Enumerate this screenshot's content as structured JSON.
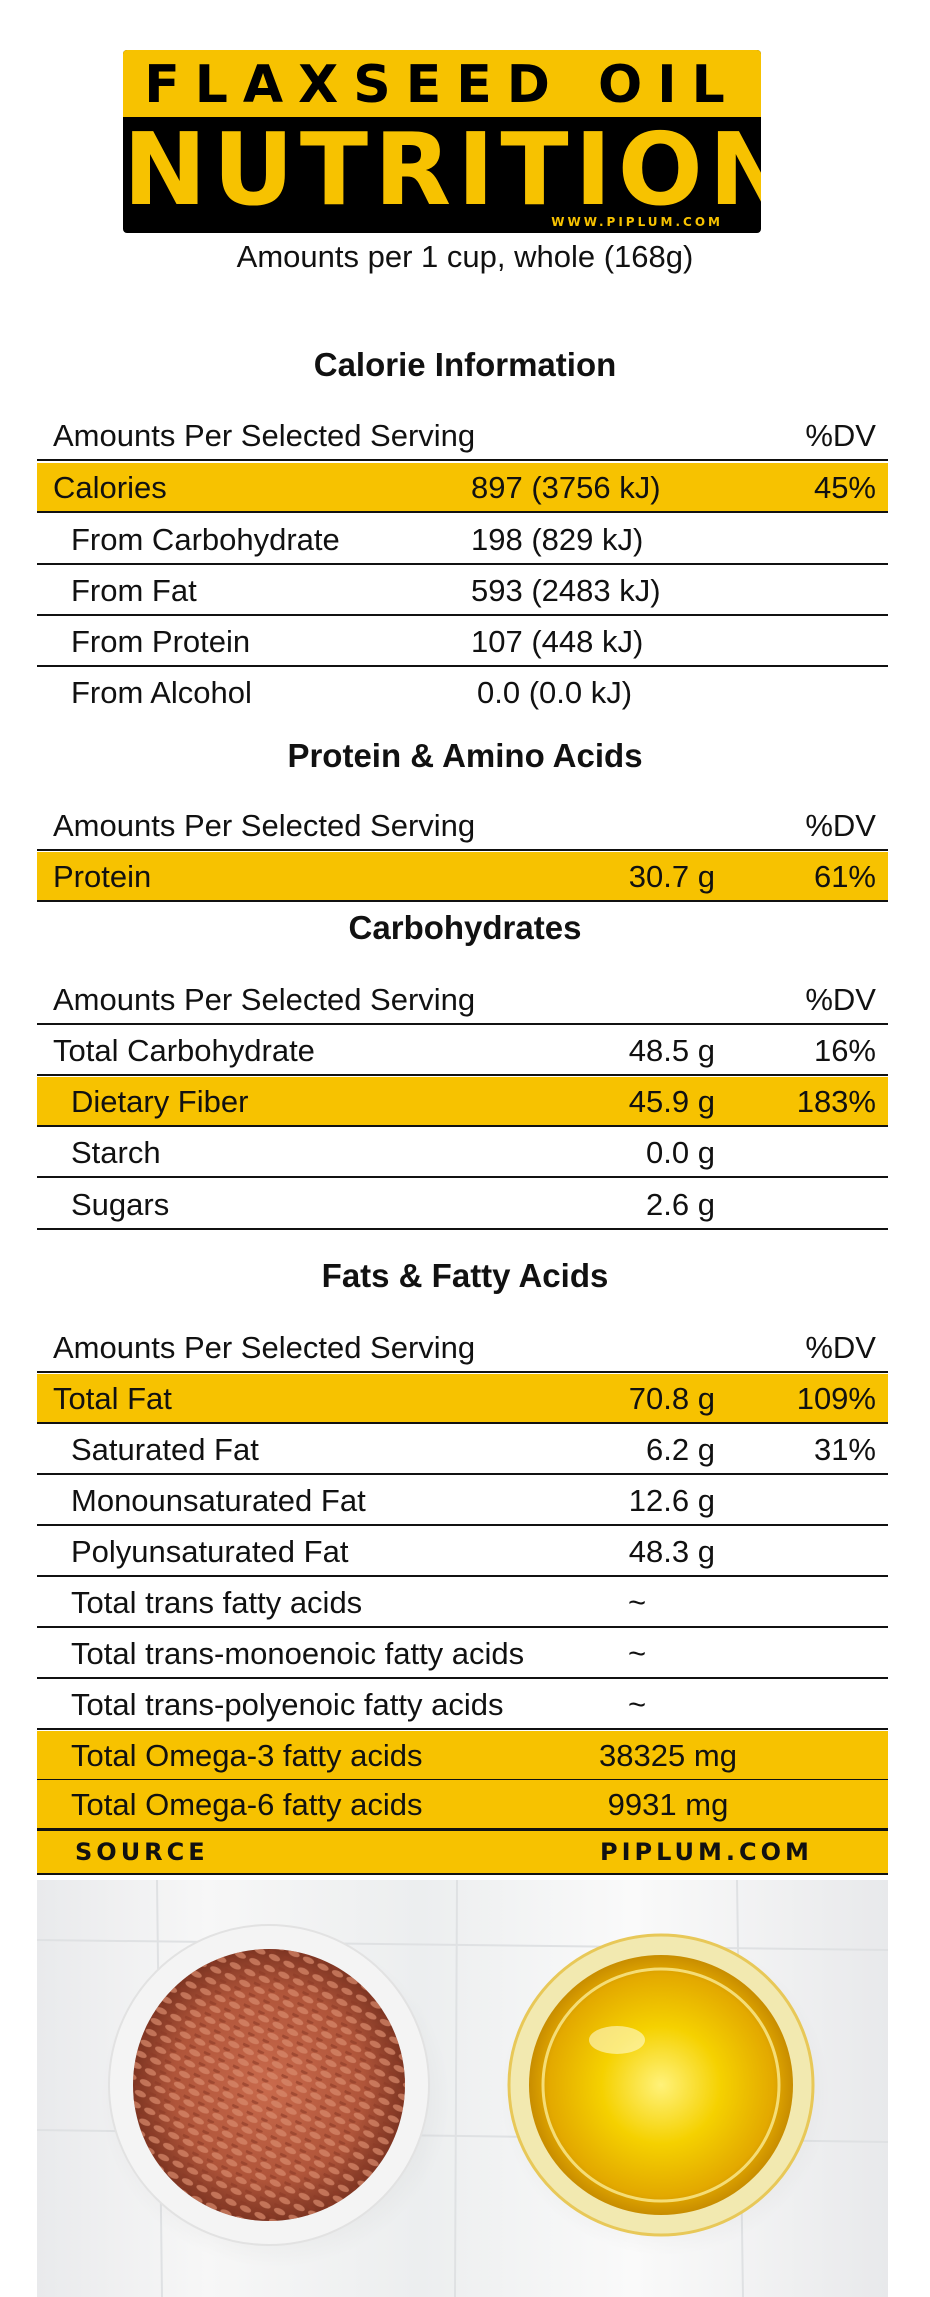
{
  "header": {
    "line1": "FLAXSEED OIL",
    "line2": "NUTRITION",
    "website": "WWW.PIPLUM.COM",
    "serving": "Amounts per 1 cup, whole (168g)"
  },
  "sections": {
    "calorie": {
      "title": "Calorie Information",
      "header_label": "Amounts Per Selected Serving",
      "header_dv": "%DV",
      "rows": [
        {
          "label": "Calories",
          "value": "897 (3756 kJ)",
          "dv": "45%"
        },
        {
          "label": "From Carbohydrate",
          "value": "198 (829 kJ)",
          "dv": ""
        },
        {
          "label": "From Fat",
          "value": "593 (2483 kJ)",
          "dv": ""
        },
        {
          "label": "From Protein",
          "value": "107 (448 kJ)",
          "dv": ""
        },
        {
          "label": "From Alcohol",
          "value": "0.0 (0.0 kJ)",
          "dv": ""
        }
      ]
    },
    "protein": {
      "title": "Protein & Amino Acids",
      "header_label": "Amounts Per Selected Serving",
      "header_dv": "%DV",
      "rows": [
        {
          "label": "Protein",
          "value": "30.7 g",
          "dv": "61%"
        }
      ]
    },
    "carbs": {
      "title": "Carbohydrates",
      "header_label": "Amounts Per Selected Serving",
      "header_dv": "%DV",
      "rows": [
        {
          "label": "Total Carbohydrate",
          "value": "48.5 g",
          "dv": "16%"
        },
        {
          "label": "Dietary Fiber",
          "value": "45.9 g",
          "dv": "183%"
        },
        {
          "label": "Starch",
          "value": "0.0 g",
          "dv": ""
        },
        {
          "label": "Sugars",
          "value": "2.6 g",
          "dv": ""
        }
      ]
    },
    "fats": {
      "title": "Fats & Fatty Acids",
      "header_label": "Amounts Per Selected Serving",
      "header_dv": "%DV",
      "rows": [
        {
          "label": "Total Fat",
          "value": "70.8 g",
          "dv": "109%"
        },
        {
          "label": "Saturated Fat",
          "value": "6.2 g",
          "dv": "31%"
        },
        {
          "label": "Monounsaturated Fat",
          "value": "12.6 g",
          "dv": ""
        },
        {
          "label": "Polyunsaturated Fat",
          "value": "48.3 g",
          "dv": ""
        },
        {
          "label": "Total trans fatty acids",
          "value": "~",
          "dv": ""
        },
        {
          "label": "Total trans-monoenoic fatty acids",
          "value": "~",
          "dv": ""
        },
        {
          "label": "Total trans-polyenoic fatty acids",
          "value": "~",
          "dv": ""
        },
        {
          "label": "Total Omega-3 fatty acids",
          "value": "38325 mg",
          "dv": ""
        },
        {
          "label": "Total Omega-6 fatty acids",
          "value": "9931 mg",
          "dv": ""
        }
      ]
    }
  },
  "source": {
    "label": "SOURCE",
    "value": "PIPLUM.COM"
  },
  "colors": {
    "accent": "#f7c200",
    "banner_bg": "#000000"
  },
  "photo": {
    "left_item": "flaxseed-bowl-image",
    "right_item": "oil-bowl-image"
  }
}
